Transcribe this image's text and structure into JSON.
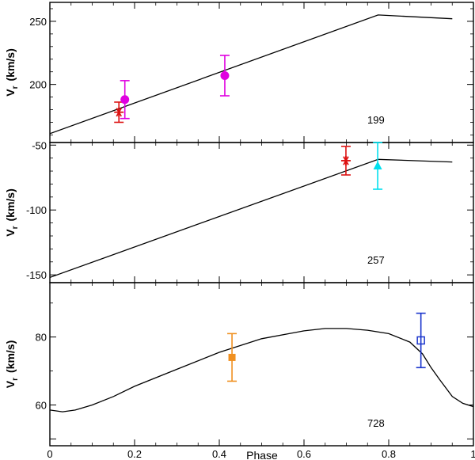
{
  "chart_data": {
    "type": "line",
    "xlabel": "Phase",
    "xlim": [
      0,
      1
    ],
    "xticks": [
      0,
      0.2,
      0.4,
      0.6,
      0.8,
      1
    ],
    "xtick_labels": [
      "0",
      "0.2",
      "0.4",
      "0.6",
      "0.8",
      "1"
    ],
    "ylabel_main": "V",
    "ylabel_sub": "r",
    "ylabel_units": "(km/s)",
    "panels": [
      {
        "label": "199",
        "ylim": [
          154,
          265
        ],
        "yticks": [
          200,
          250
        ],
        "ytick_labels": [
          "200",
          "250"
        ],
        "model": {
          "x": [
            0,
            0.775,
            0.95
          ],
          "y": [
            161,
            255,
            252
          ]
        },
        "points": [
          {
            "name": "red-star",
            "marker": "star",
            "color": "#dd1111",
            "x": 0.163,
            "y": 178,
            "err": 8
          },
          {
            "name": "magenta-circle-1",
            "marker": "filled-circle",
            "color": "#e000e0",
            "x": 0.177,
            "y": 188,
            "err": 15
          },
          {
            "name": "magenta-circle-2",
            "marker": "filled-circle",
            "color": "#e000e0",
            "x": 0.413,
            "y": 207,
            "err": 16
          }
        ]
      },
      {
        "label": "257",
        "ylim": [
          -156,
          -48
        ],
        "yticks": [
          -150,
          -100,
          -50
        ],
        "ytick_labels": [
          "-150",
          "-100",
          "-50"
        ],
        "model": {
          "x": [
            0,
            0.775,
            0.95
          ],
          "y": [
            -152,
            -61,
            -63
          ]
        },
        "points": [
          {
            "name": "red-star",
            "marker": "star",
            "color": "#dd1111",
            "x": 0.699,
            "y": -62,
            "err": 11
          },
          {
            "name": "cyan-triangle",
            "marker": "filled-triangle",
            "color": "#00e0ee",
            "x": 0.774,
            "y": -66,
            "err": 18
          }
        ]
      },
      {
        "label": "728",
        "ylim": [
          48,
          96
        ],
        "yticks": [
          60,
          80
        ],
        "ytick_labels": [
          "60",
          "80"
        ],
        "model": {
          "x": [
            0,
            0.03,
            0.06,
            0.1,
            0.15,
            0.2,
            0.3,
            0.4,
            0.5,
            0.6,
            0.65,
            0.7,
            0.75,
            0.8,
            0.85,
            0.88,
            0.9,
            0.92,
            0.95,
            0.975,
            1.0
          ],
          "y": [
            58.5,
            58.0,
            58.5,
            60.0,
            62.5,
            65.5,
            70.5,
            75.5,
            79.5,
            81.8,
            82.5,
            82.5,
            82.0,
            81.0,
            78.5,
            75.0,
            71.0,
            67.5,
            62.5,
            60.5,
            59.5
          ]
        },
        "points": [
          {
            "name": "orange-square",
            "marker": "filled-square",
            "color": "#f09020",
            "x": 0.43,
            "y": 74,
            "err": 7
          },
          {
            "name": "blue-open-square",
            "marker": "open-square",
            "color": "#1a35cc",
            "x": 0.876,
            "y": 79,
            "err": 8
          }
        ]
      }
    ]
  }
}
